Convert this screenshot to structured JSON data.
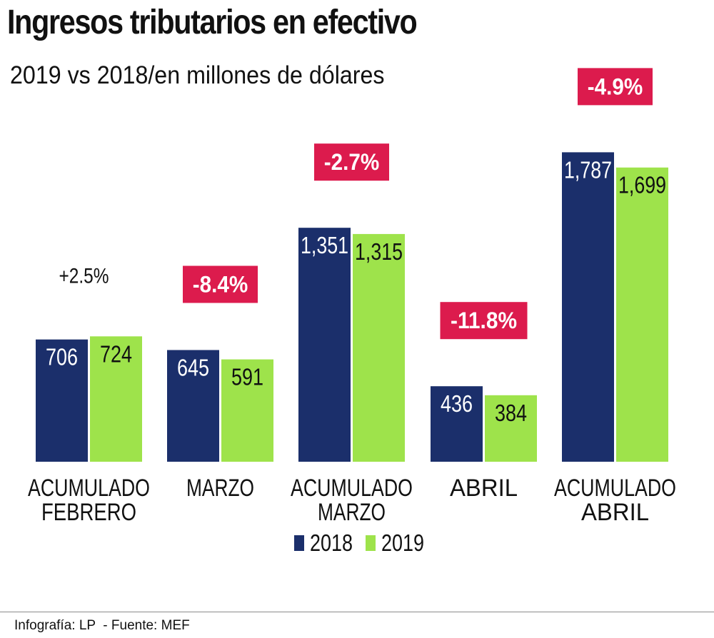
{
  "chart_data": {
    "type": "bar",
    "title": "Ingresos tributarios en efectivo",
    "subtitle": "2019 vs 2018/en millones de dólares",
    "categories": [
      [
        "ACUMULADO",
        "FEBRERO"
      ],
      [
        "MARZO"
      ],
      [
        "ACUMULADO",
        "MARZO"
      ],
      [
        "ABRIL"
      ],
      [
        "ACUMULADO",
        "ABRIL"
      ]
    ],
    "series": [
      {
        "name": "2018",
        "values": [
          706,
          645,
          1351,
          436,
          1787
        ],
        "labels": [
          "706",
          "645",
          "1,351",
          "436",
          "1,787"
        ]
      },
      {
        "name": "2019",
        "values": [
          724,
          591,
          1315,
          384,
          1699
        ],
        "labels": [
          "724",
          "591",
          "1,315",
          "384",
          "1,699"
        ]
      }
    ],
    "changes": [
      {
        "text": "+2.5%",
        "highlight": false
      },
      {
        "text": "-8.4%",
        "highlight": true
      },
      {
        "text": "-2.7%",
        "highlight": true
      },
      {
        "text": "-11.8%",
        "highlight": true
      },
      {
        "text": "-4.9%",
        "highlight": true
      }
    ],
    "ylim": [
      0,
      1950
    ],
    "grid": false,
    "legend_position": "bottom-center"
  },
  "colors": {
    "series_2018": "#1b2f6b",
    "series_2019": "#9ee34b",
    "highlight": "#dc1b4d",
    "text": "#111111",
    "bar_label": "#ffffff"
  },
  "footer": {
    "credit": "Infografía: LP",
    "source": "- Fuente: MEF"
  }
}
